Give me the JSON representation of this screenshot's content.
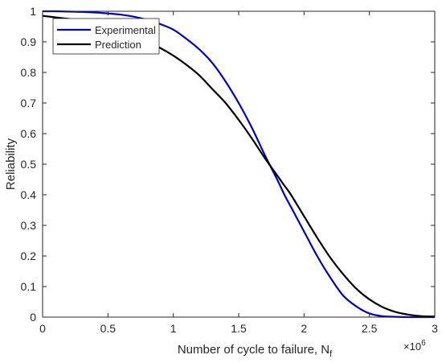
{
  "chart_data": {
    "type": "line",
    "title": "",
    "xlabel": "Number of cycle to failure, N",
    "xlabel_subscript": "f",
    "ylabel": "Reliability",
    "x_exponent_label": "×10",
    "x_exponent_power": "6",
    "xlim": [
      0,
      3
    ],
    "ylim": [
      0,
      1
    ],
    "x_ticks": [
      0,
      0.5,
      1,
      1.5,
      2,
      2.5,
      3
    ],
    "x_tick_labels": [
      "0",
      "0.5",
      "1",
      "1.5",
      "2",
      "2.5",
      "3"
    ],
    "y_ticks": [
      0,
      0.1,
      0.2,
      0.3,
      0.4,
      0.5,
      0.6,
      0.7,
      0.8,
      0.9,
      1
    ],
    "y_tick_labels": [
      "0",
      "0.1",
      "0.2",
      "0.3",
      "0.4",
      "0.5",
      "0.6",
      "0.7",
      "0.8",
      "0.9",
      "1"
    ],
    "grid": false,
    "legend_position": "top-left",
    "x": [
      0,
      0.1,
      0.2,
      0.3,
      0.4,
      0.5,
      0.6,
      0.7,
      0.8,
      0.9,
      1.0,
      1.1,
      1.2,
      1.3,
      1.4,
      1.5,
      1.6,
      1.7,
      1.8,
      1.85,
      1.9,
      2.0,
      2.1,
      2.2,
      2.3,
      2.4,
      2.5,
      2.6,
      2.7,
      2.8,
      2.9,
      3.0
    ],
    "series": [
      {
        "name": "Experimental",
        "color": "#0000cc",
        "values": [
          1.0,
          1.0,
          0.999,
          0.998,
          0.996,
          0.993,
          0.989,
          0.982,
          0.972,
          0.958,
          0.94,
          0.91,
          0.875,
          0.83,
          0.77,
          0.7,
          0.62,
          0.53,
          0.445,
          0.4,
          0.36,
          0.28,
          0.2,
          0.13,
          0.07,
          0.035,
          0.012,
          0.003,
          0.001,
          0.0,
          0.0,
          0.0
        ]
      },
      {
        "name": "Prediction",
        "color": "#000000",
        "values": [
          0.985,
          0.98,
          0.975,
          0.966,
          0.956,
          0.945,
          0.932,
          0.918,
          0.9,
          0.88,
          0.855,
          0.825,
          0.79,
          0.745,
          0.7,
          0.645,
          0.585,
          0.52,
          0.46,
          0.43,
          0.4,
          0.33,
          0.26,
          0.195,
          0.14,
          0.093,
          0.058,
          0.033,
          0.017,
          0.008,
          0.003,
          0.002
        ]
      }
    ]
  }
}
